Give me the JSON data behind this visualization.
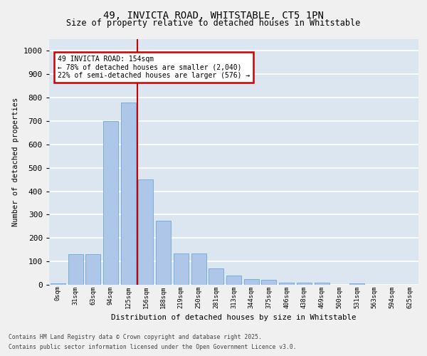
{
  "title_line1": "49, INVICTA ROAD, WHITSTABLE, CT5 1PN",
  "title_line2": "Size of property relative to detached houses in Whitstable",
  "xlabel": "Distribution of detached houses by size in Whitstable",
  "ylabel": "Number of detached properties",
  "categories": [
    "0sqm",
    "31sqm",
    "63sqm",
    "94sqm",
    "125sqm",
    "156sqm",
    "188sqm",
    "219sqm",
    "250sqm",
    "281sqm",
    "313sqm",
    "344sqm",
    "375sqm",
    "406sqm",
    "438sqm",
    "469sqm",
    "500sqm",
    "531sqm",
    "563sqm",
    "594sqm",
    "625sqm"
  ],
  "values": [
    5,
    130,
    130,
    700,
    780,
    450,
    275,
    135,
    135,
    70,
    40,
    25,
    20,
    10,
    10,
    10,
    0,
    5,
    0,
    0,
    0
  ],
  "bar_color": "#aec6e8",
  "bar_edge_color": "#5a9fd4",
  "highlight_index": 5,
  "highlight_color": "#cc0000",
  "ylim": [
    0,
    1050
  ],
  "yticks": [
    0,
    100,
    200,
    300,
    400,
    500,
    600,
    700,
    800,
    900,
    1000
  ],
  "annotation_title": "49 INVICTA ROAD: 154sqm",
  "annotation_line1": "← 78% of detached houses are smaller (2,040)",
  "annotation_line2": "22% of semi-detached houses are larger (576) →",
  "bg_color": "#dce6f0",
  "grid_color": "#ffffff",
  "footer_line1": "Contains HM Land Registry data © Crown copyright and database right 2025.",
  "footer_line2": "Contains public sector information licensed under the Open Government Licence v3.0."
}
